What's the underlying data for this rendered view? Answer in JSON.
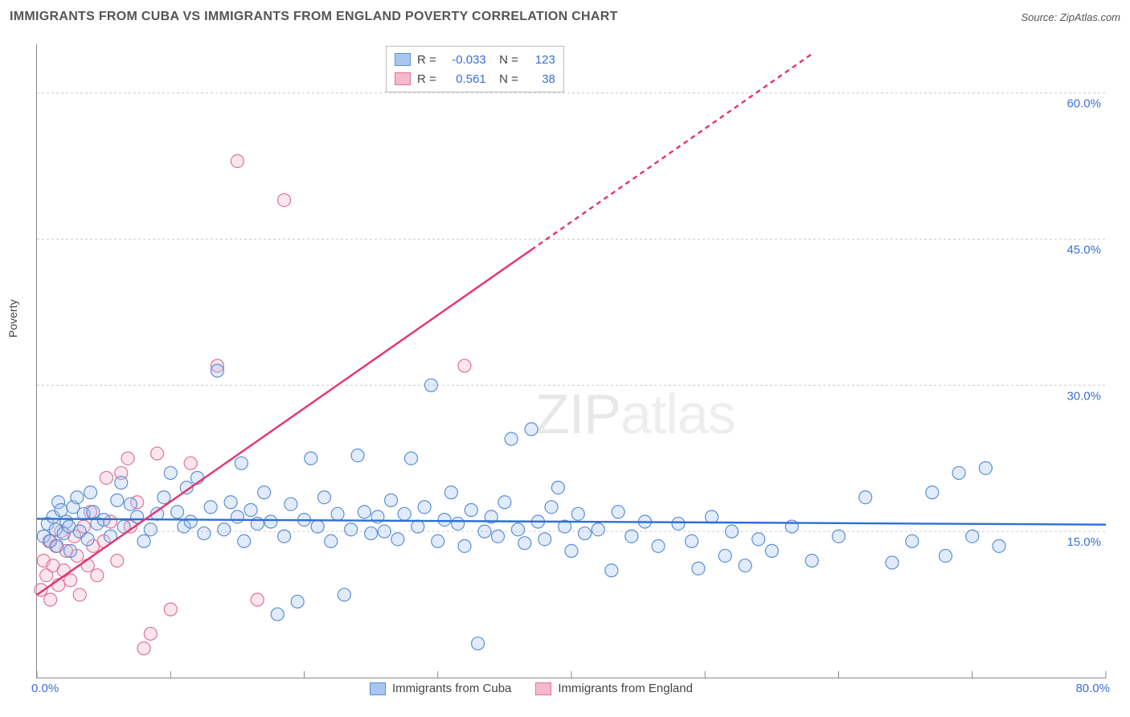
{
  "title": "IMMIGRANTS FROM CUBA VS IMMIGRANTS FROM ENGLAND POVERTY CORRELATION CHART",
  "source": "Source: ZipAtlas.com",
  "watermark": "ZIPatlas",
  "yaxis_label": "Poverty",
  "chart": {
    "type": "scatter",
    "background_color": "#ffffff",
    "grid_color": "#cccccc",
    "axis_color": "#888888",
    "label_color": "#3b6fd6",
    "xlim": [
      0,
      80
    ],
    "ylim": [
      0,
      65
    ],
    "x_ticks": [
      0,
      10,
      20,
      30,
      40,
      50,
      60,
      70,
      80
    ],
    "y_ticks": [
      15,
      30,
      45,
      60
    ],
    "y_tick_labels": [
      "15.0%",
      "30.0%",
      "45.0%",
      "60.0%"
    ],
    "x_min_label": "0.0%",
    "x_max_label": "80.0%",
    "marker_radius": 8,
    "marker_fill_opacity": 0.35,
    "line_width": 2.4
  },
  "series": [
    {
      "name": "Immigrants from Cuba",
      "color_fill": "#a8c6f0",
      "color_stroke": "#5b8fd6",
      "reg_color": "#2c6fd6",
      "R": "-0.033",
      "N": "123",
      "regression": {
        "x1": 0,
        "y1": 16.3,
        "x2": 80,
        "y2": 15.7,
        "dashed_after_x": 80
      },
      "points": [
        [
          0.5,
          14.5
        ],
        [
          0.8,
          15.8
        ],
        [
          1.0,
          14.0
        ],
        [
          1.2,
          16.5
        ],
        [
          1.4,
          15.2
        ],
        [
          1.5,
          13.5
        ],
        [
          1.6,
          18.0
        ],
        [
          1.8,
          17.2
        ],
        [
          2.0,
          14.8
        ],
        [
          2.2,
          16.0
        ],
        [
          2.4,
          15.5
        ],
        [
          2.5,
          13.0
        ],
        [
          2.7,
          17.5
        ],
        [
          3.0,
          18.5
        ],
        [
          3.2,
          15.0
        ],
        [
          3.5,
          16.8
        ],
        [
          3.8,
          14.2
        ],
        [
          4.0,
          19.0
        ],
        [
          4.2,
          17.0
        ],
        [
          4.5,
          15.8
        ],
        [
          5.0,
          16.2
        ],
        [
          5.5,
          14.5
        ],
        [
          6.0,
          18.2
        ],
        [
          6.3,
          20.0
        ],
        [
          6.5,
          15.5
        ],
        [
          7.0,
          17.8
        ],
        [
          7.5,
          16.5
        ],
        [
          8.0,
          14.0
        ],
        [
          8.5,
          15.2
        ],
        [
          9.0,
          16.8
        ],
        [
          9.5,
          18.5
        ],
        [
          10.0,
          21.0
        ],
        [
          10.5,
          17.0
        ],
        [
          11.0,
          15.5
        ],
        [
          11.2,
          19.5
        ],
        [
          11.5,
          16.0
        ],
        [
          12.0,
          20.5
        ],
        [
          12.5,
          14.8
        ],
        [
          13.0,
          17.5
        ],
        [
          13.5,
          31.5
        ],
        [
          14.0,
          15.2
        ],
        [
          14.5,
          18.0
        ],
        [
          15.0,
          16.5
        ],
        [
          15.3,
          22.0
        ],
        [
          15.5,
          14.0
        ],
        [
          16.0,
          17.2
        ],
        [
          16.5,
          15.8
        ],
        [
          17.0,
          19.0
        ],
        [
          17.5,
          16.0
        ],
        [
          18.0,
          6.5
        ],
        [
          18.5,
          14.5
        ],
        [
          19.0,
          17.8
        ],
        [
          19.5,
          7.8
        ],
        [
          20.0,
          16.2
        ],
        [
          20.5,
          22.5
        ],
        [
          21.0,
          15.5
        ],
        [
          21.5,
          18.5
        ],
        [
          22.0,
          14.0
        ],
        [
          22.5,
          16.8
        ],
        [
          23.0,
          8.5
        ],
        [
          23.5,
          15.2
        ],
        [
          24.0,
          22.8
        ],
        [
          24.5,
          17.0
        ],
        [
          25.0,
          14.8
        ],
        [
          25.5,
          16.5
        ],
        [
          26.0,
          15.0
        ],
        [
          26.5,
          18.2
        ],
        [
          27.0,
          14.2
        ],
        [
          27.5,
          16.8
        ],
        [
          28.0,
          22.5
        ],
        [
          28.5,
          15.5
        ],
        [
          29.0,
          17.5
        ],
        [
          29.5,
          30.0
        ],
        [
          30.0,
          14.0
        ],
        [
          30.5,
          16.2
        ],
        [
          31.0,
          19.0
        ],
        [
          31.5,
          15.8
        ],
        [
          32.0,
          13.5
        ],
        [
          32.5,
          17.2
        ],
        [
          33.0,
          3.5
        ],
        [
          33.5,
          15.0
        ],
        [
          34.0,
          16.5
        ],
        [
          34.5,
          14.5
        ],
        [
          35.0,
          18.0
        ],
        [
          35.5,
          24.5
        ],
        [
          36.0,
          15.2
        ],
        [
          36.5,
          13.8
        ],
        [
          37.0,
          25.5
        ],
        [
          37.5,
          16.0
        ],
        [
          38.0,
          14.2
        ],
        [
          38.5,
          17.5
        ],
        [
          39.0,
          19.5
        ],
        [
          39.5,
          15.5
        ],
        [
          40.0,
          13.0
        ],
        [
          40.5,
          16.8
        ],
        [
          41.0,
          14.8
        ],
        [
          42.0,
          15.2
        ],
        [
          43.0,
          11.0
        ],
        [
          43.5,
          17.0
        ],
        [
          44.5,
          14.5
        ],
        [
          45.5,
          16.0
        ],
        [
          46.5,
          13.5
        ],
        [
          48.0,
          15.8
        ],
        [
          49.0,
          14.0
        ],
        [
          49.5,
          11.2
        ],
        [
          50.5,
          16.5
        ],
        [
          51.5,
          12.5
        ],
        [
          52.0,
          15.0
        ],
        [
          53.0,
          11.5
        ],
        [
          54.0,
          14.2
        ],
        [
          55.0,
          13.0
        ],
        [
          56.5,
          15.5
        ],
        [
          58.0,
          12.0
        ],
        [
          60.0,
          14.5
        ],
        [
          62.0,
          18.5
        ],
        [
          64.0,
          11.8
        ],
        [
          65.5,
          14.0
        ],
        [
          67.0,
          19.0
        ],
        [
          68.0,
          12.5
        ],
        [
          69.0,
          21.0
        ],
        [
          70.0,
          14.5
        ],
        [
          71.0,
          21.5
        ],
        [
          72.0,
          13.5
        ]
      ]
    },
    {
      "name": "Immigrants from England",
      "color_fill": "#f5b8cc",
      "color_stroke": "#e0719a",
      "reg_color": "#e6336b",
      "R": "0.561",
      "N": "38",
      "regression": {
        "x1": 0,
        "y1": 8.5,
        "x2": 58,
        "y2": 64.0,
        "dashed_after_x": 37
      },
      "points": [
        [
          0.3,
          9.0
        ],
        [
          0.5,
          12.0
        ],
        [
          0.7,
          10.5
        ],
        [
          0.9,
          14.0
        ],
        [
          1.0,
          8.0
        ],
        [
          1.2,
          11.5
        ],
        [
          1.4,
          13.5
        ],
        [
          1.6,
          9.5
        ],
        [
          1.8,
          15.0
        ],
        [
          2.0,
          11.0
        ],
        [
          2.2,
          13.0
        ],
        [
          2.5,
          10.0
        ],
        [
          2.8,
          14.5
        ],
        [
          3.0,
          12.5
        ],
        [
          3.2,
          8.5
        ],
        [
          3.5,
          15.5
        ],
        [
          3.8,
          11.5
        ],
        [
          4.0,
          17.0
        ],
        [
          4.2,
          13.5
        ],
        [
          4.5,
          10.5
        ],
        [
          5.0,
          14.0
        ],
        [
          5.2,
          20.5
        ],
        [
          5.5,
          16.0
        ],
        [
          6.0,
          12.0
        ],
        [
          6.3,
          21.0
        ],
        [
          6.8,
          22.5
        ],
        [
          7.0,
          15.5
        ],
        [
          7.5,
          18.0
        ],
        [
          8.0,
          3.0
        ],
        [
          8.5,
          4.5
        ],
        [
          9.0,
          23.0
        ],
        [
          10.0,
          7.0
        ],
        [
          11.5,
          22.0
        ],
        [
          13.5,
          32.0
        ],
        [
          15.0,
          53.0
        ],
        [
          16.5,
          8.0
        ],
        [
          18.5,
          49.0
        ],
        [
          32.0,
          32.0
        ]
      ]
    }
  ],
  "legend_bottom": [
    {
      "label": "Immigrants from Cuba",
      "fill": "#a8c6f0",
      "stroke": "#5b8fd6"
    },
    {
      "label": "Immigrants from England",
      "fill": "#f5b8cc",
      "stroke": "#e0719a"
    }
  ]
}
